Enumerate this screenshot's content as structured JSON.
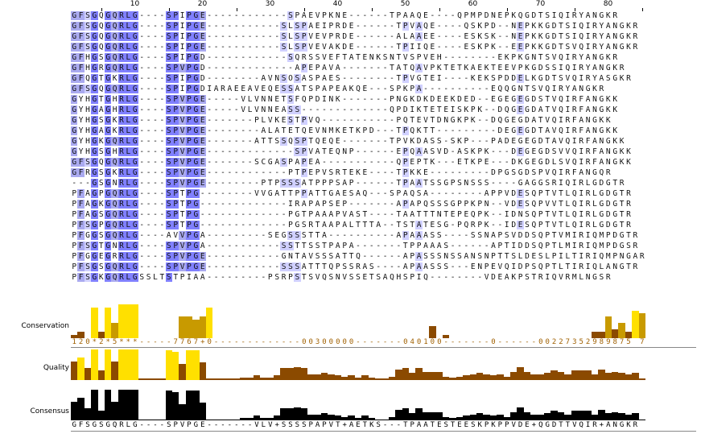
{
  "ruler": {
    "labels": [
      "10",
      "20",
      "30",
      "40",
      "50",
      "60",
      "70",
      "80"
    ],
    "positions": [
      10,
      20,
      30,
      40,
      50,
      60,
      70,
      80
    ]
  },
  "alignment": {
    "sequences": [
      "GFSGQGQRLG----SPIPGE------------SPAEVPKNE------TPAAQE----QPMPDNEPKQGDTSIQIRYANGKR",
      "GFSGQGQRLG----SPIPGE-----------SLSPAEIPRDE------TPVAQE----QSKPD--NEPKKGDTSIQIRYANGKR",
      "GFSGQGQRLG----SPIPGE-----------SLSPVEVPRDE------ALAAEE----ESKSK--NEPKKGDTSIQIRYANGKR",
      "GFSGQGQRLG----SPIPGE-----------SLSPVEVAKDE------TPIIQE----ESKPK--EEPKKGDTSVQIRYANGKR",
      "GFHGSGQRLG----SPIPGD------------SQRSSVEFTATENKSNTVSPVEH--------EKPKGNTSVQIRYANGKR",
      "GFHGRGQRLG----SPVPGD-------------APEPAVA-------TATQAVPKTETKAEKTEEVPKGDSSIQIRYANGKR",
      "GFQGTGKRLG----SPIPGD--------AVNSOSASPAES--------TPVGTEI----KEKSPDDELKGDTSVQIRYASGKR",
      "GFSGQGQRLG----SPIPGDIARAEEAVEQESSATSPAPEAKQE---SPKPA----------EQQGNTSVQIRYANGKR",
      "GYHGTGHRLG----SPVPGE-----VLVNNETSFQPDINK-------PNGKDKDEEKDED--EGEGEGDSTVQIRFANGKK",
      "GYHGAGHRLG----SPVPGE-----VLVNNEASS-------------QPDIKTETEISKPK--DQGEGDATVQIRFANGKK",
      "GYHGSGKRLG----SPVPGE-------PLVKESTPVQ-----------PQTEVTDNGKPK--DQGEGDATVQIRFANGKK",
      "GYHGAGKRLG----SPVPGE--------ALATETQEVNMKETKPD---TPQKTT---------DEGEGDTAVQIRFANGKK",
      "GYHGKGQRLG----SPVPGE-------ATTSSQSPTQEQE-------TPVKDASS-SKP---PADEGEGDTAVQIRFANGKK",
      "GYHGSGHRLG----SPVPGE-------------SPVATEQNP------EPQAASVD-ASKPK---DEGEGDSVVQIRFANGKK",
      "GFSGQGQRLG----SPVPGE-------SCGASPAPEA-----------QPEPTK---ETKPE---DKGEGDLSVQIRFANGKK",
      "GFRGSGKRLG----SPVPGE------------PTPEPVSRTEKE----TPKKE---------DPGSGDSPVQIRFANGQR",
      "---GSGNRLG----SPVPGE--------PTPSSSATPPPSAP------TPAATSSGPSNSSS----GAGGSRIQIRLGDGTR",
      "PFAGPGQRLG----SPTPG--------VVGATTPPATTGAESAQ---SPAQSA--------APPVDESQPTVTLQIRLGDGTR",
      "PFAGKGQRLG----SPTPG-------------IRAPAPSEP-------APAPQSSSGPPKPN--VDESQPVVTLQIRLGDGTR",
      "PFAGSGQRLG----SPTPG-------------PGTPAAAPVAST----TAATTTNTEPEQPK--IDNSQPTVTLQIRLGDGTR",
      "PFSGPGQRLG----SPTPG-------------PGSRTAAPALTTTA--TSTATESG-PQRPK--IDESQPTVTLQIRLGDGTR",
      "PFGGSGQRLG----AVVPGA---------SEGSSSTTA----------APAAASS----SSNAPSVDDSQPTVMIRIQMPDGTR",
      "PFSGTGNRLG----SPVPGA-----------SSTTSSTPAPA-------TPPAAAS------APTIDDSQPTLMIRIQMPDGSR",
      "PFGGEGRRLG----SPVPGE-----------GNTAVSSSATTQ------APASSSNSSANSNPTTSLDESLPILTIRIQMPNGAR",
      "PFSGSGQRLG----SPVPGE-----------SSSATTTQPSSRAS----APAASSS---ENPEVQIDPSQPTLTIRIQLANGTR",
      "PFSGKGQRLGSSLTSTPIAA---------PSRPSTSVQSNVSSETSAQHSPIQ--------VDEAKPSTRIQVRMLNGSR"
    ],
    "highlight_color_dark": "#8080ff",
    "highlight_color_mid": "#aaaaf0",
    "highlight_color_light": "#d0d0ff"
  },
  "annotations": {
    "conservation": {
      "label": "Conservation",
      "values": [
        1,
        2,
        0,
        10,
        2,
        10,
        5,
        11,
        11,
        11,
        0,
        0,
        0,
        0,
        0,
        0,
        7,
        7,
        6,
        7,
        10,
        0,
        0,
        0,
        0,
        0,
        0,
        0,
        0,
        0,
        0,
        0,
        0,
        0,
        0,
        0,
        0,
        0,
        0,
        0,
        0,
        0,
        0,
        0,
        0,
        0,
        0,
        0,
        0,
        0,
        0,
        0,
        0,
        4,
        0,
        1,
        0,
        0,
        0,
        0,
        0,
        0,
        0,
        0,
        0,
        0,
        0,
        0,
        0,
        0,
        0,
        0,
        0,
        0,
        0,
        0,
        0,
        2,
        2,
        7,
        3,
        5,
        2,
        9,
        8,
        9,
        8,
        7,
        5,
        7,
        10,
        4,
        9
      ],
      "text": "120*2*5***-----7767+0-------------00300000-------040100-------0------00227352989875 7*49",
      "color_high": "#ffe000",
      "color_low": "#8b4a00",
      "color_mid": "#c89a00",
      "text_color": "#a06000"
    },
    "quality": {
      "label": "Quality",
      "color_high": "#ffe000",
      "color_low": "#8b4a00"
    },
    "consensus": {
      "label": "Consensus",
      "text": "GFSGSGQRLG----SPVPGE-------VLV+SSSSPAPVT+AETKS---TPAATESTEESKPKPPVDE+QGDTTVQIR+ANGKR",
      "color": "#000000"
    }
  }
}
